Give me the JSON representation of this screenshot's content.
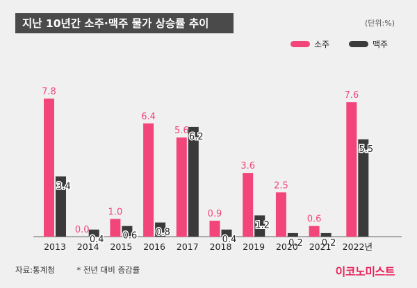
{
  "header": {
    "title": "지난 10년간 소주·맥주 물가 상승률 추이",
    "unit": "(단위:%)"
  },
  "colors": {
    "soju": "#f2457a",
    "beer": "#3a3a3a",
    "accent": "#e8225a"
  },
  "footer": {
    "source": "자료:통계청",
    "note": "* 전년 대비 증감률",
    "logo": "이코노미스트"
  },
  "chart_data": {
    "type": "bar",
    "categories": [
      "2013",
      "2014",
      "2015",
      "2016",
      "2017",
      "2018",
      "2019",
      "2020",
      "2021",
      "2022년"
    ],
    "series": [
      {
        "name": "소주",
        "values": [
          7.8,
          0.0,
          1.0,
          6.4,
          5.6,
          0.9,
          3.6,
          2.5,
          0.6,
          7.6
        ]
      },
      {
        "name": "맥주",
        "values": [
          3.4,
          0.4,
          0.6,
          0.8,
          6.2,
          0.4,
          1.2,
          0.2,
          0.2,
          5.5
        ]
      }
    ],
    "value_labels": [
      [
        "7.8",
        "0.0",
        "1.0",
        "6.4",
        "5.6",
        "0.9",
        "3.6",
        "2.5",
        "0.6",
        "7.6"
      ],
      [
        "3.4",
        "0.4",
        "0.6",
        "0.8",
        "6.2",
        "0.4",
        "1.2",
        "0.2",
        "0.2",
        "5.5"
      ]
    ],
    "title": "지난 10년간 소주·맥주 물가 상승률 추이",
    "ylim": [
      0,
      8
    ],
    "grid": false,
    "legend": "top-right"
  }
}
